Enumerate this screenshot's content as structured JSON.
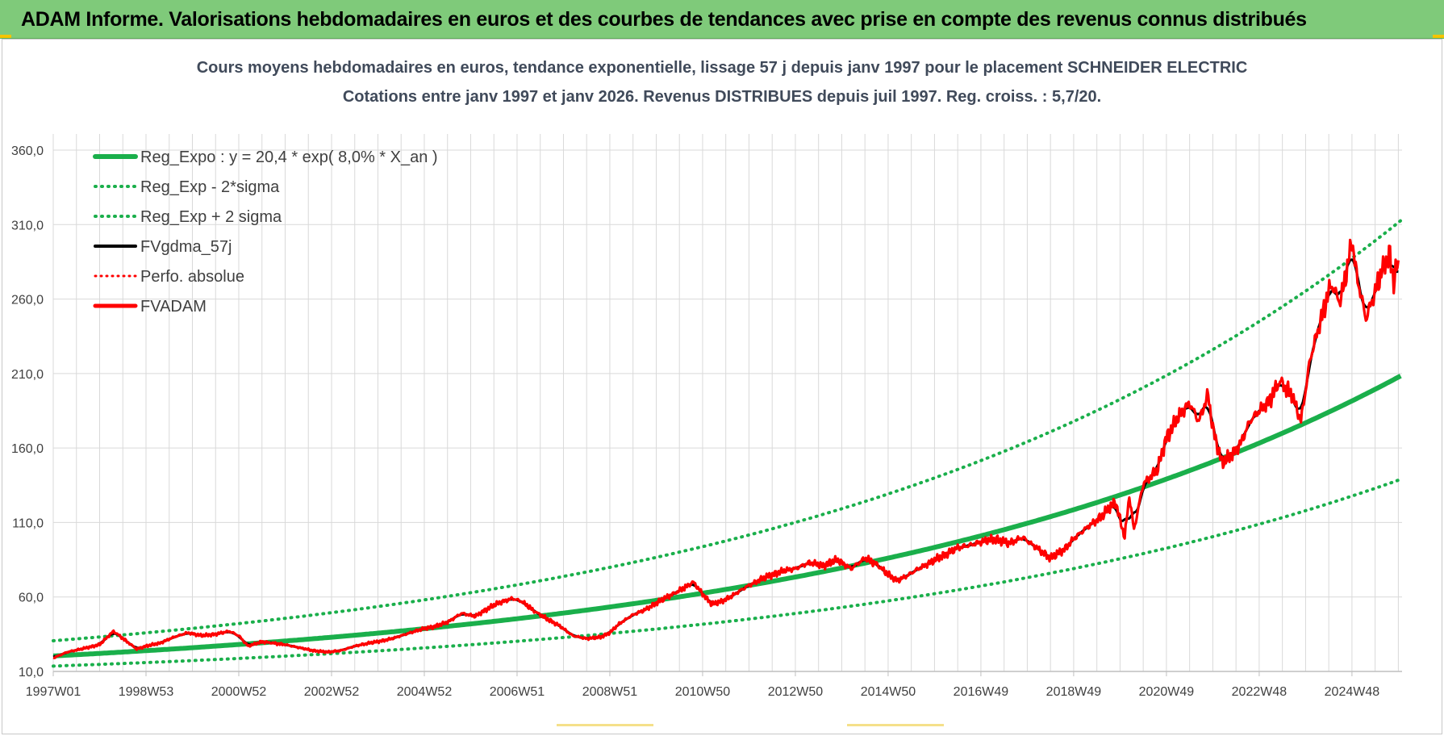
{
  "header": {
    "title": "ADAM Informe. Valorisations hebdomadaires en euros et des courbes de tendances avec prise en compte des revenus connus distribués"
  },
  "colors": {
    "header_bg": "#7fca7a",
    "trend": "#1aaf4b",
    "smooth": "#000000",
    "price": "#ff0000",
    "grid": "#d9d9d9",
    "title_text": "#404a5a"
  },
  "chart_data": {
    "type": "line",
    "title": "Cours moyens hebdomadaires en euros, tendance exponentielle, lissage 57 j depuis janv 1997 pour le placement SCHNEIDER ELECTRIC",
    "subtitle": "Cotations entre janv 1997 et janv 2026. Revenus DISTRIBUES depuis juil 1997. Reg. croiss. : 5,7/20.",
    "xlabel": "",
    "ylabel": "",
    "xlim": [
      1997.0,
      2026.08
    ],
    "ylim": [
      10,
      360
    ],
    "y_ticks": [
      10,
      60,
      110,
      160,
      210,
      260,
      310,
      360
    ],
    "y_tick_labels": [
      "10,0",
      "60,0",
      "110,0",
      "160,0",
      "210,0",
      "260,0",
      "310,0",
      "360,0"
    ],
    "x_ticks": [
      1997.0,
      1999.0,
      2001.0,
      2003.0,
      2005.0,
      2007.0,
      2009.0,
      2011.0,
      2013.0,
      2015.0,
      2017.0,
      2019.0,
      2021.0,
      2023.0,
      2025.0
    ],
    "x_tick_labels": [
      "1997W01",
      "1998W53",
      "2000W52",
      "2002W52",
      "2004W52",
      "2006W51",
      "2008W51",
      "2010W50",
      "2012W50",
      "2014W50",
      "2016W49",
      "2018W49",
      "2020W49",
      "2022W48",
      "2024W48"
    ],
    "grid": true,
    "legend_position": "top-left",
    "series": [
      {
        "name": "Reg_Expo : y = 20,4 * exp( 8,0% *  X_an )",
        "style": "solid-thick",
        "color": "#1aaf4b",
        "model": {
          "a": 20.4,
          "rate": 0.08,
          "start": 1997.0
        }
      },
      {
        "name": "Reg_Exp - 2*sigma",
        "style": "dotted",
        "color": "#1aaf4b",
        "model": {
          "a": 13.6,
          "rate": 0.08,
          "start": 1997.0
        }
      },
      {
        "name": "Reg_Exp + 2 sigma",
        "style": "dotted",
        "color": "#1aaf4b",
        "model": {
          "a": 30.6,
          "rate": 0.08,
          "start": 1997.0
        }
      },
      {
        "name": "FVgdma_57j",
        "style": "solid",
        "color": "#000000",
        "derived": "moving-average-of-FVADAM"
      },
      {
        "name": "Perfo. absolue",
        "style": "dotted",
        "color": "#ff0000",
        "values": []
      },
      {
        "name": "FVADAM",
        "style": "solid-thick",
        "color": "#ff0000",
        "x": [
          1997.0,
          1997.3,
          1997.6,
          1998.0,
          1998.3,
          1998.55,
          1998.8,
          1999.0,
          1999.3,
          1999.6,
          1999.9,
          2000.2,
          2000.5,
          2000.8,
          2001.0,
          2001.2,
          2001.5,
          2001.75,
          2002.0,
          2002.3,
          2002.6,
          2002.9,
          2003.2,
          2003.5,
          2003.8,
          2004.0,
          2004.3,
          2004.6,
          2004.9,
          2005.2,
          2005.5,
          2005.8,
          2006.1,
          2006.3,
          2006.6,
          2006.9,
          2007.1,
          2007.35,
          2007.6,
          2007.9,
          2008.2,
          2008.5,
          2008.8,
          2009.0,
          2009.2,
          2009.5,
          2009.8,
          2010.0,
          2010.3,
          2010.55,
          2010.8,
          2011.0,
          2011.2,
          2011.4,
          2011.6,
          2011.9,
          2012.2,
          2012.5,
          2012.8,
          2013.0,
          2013.3,
          2013.6,
          2013.9,
          2014.2,
          2014.5,
          2014.75,
          2015.0,
          2015.2,
          2015.4,
          2015.6,
          2015.9,
          2016.2,
          2016.5,
          2016.8,
          2017.0,
          2017.3,
          2017.6,
          2017.9,
          2018.2,
          2018.5,
          2018.8,
          2019.0,
          2019.3,
          2019.6,
          2019.9,
          2020.1,
          2020.2,
          2020.3,
          2020.5,
          2020.8,
          2021.0,
          2021.3,
          2021.5,
          2021.7,
          2021.9,
          2022.0,
          2022.2,
          2022.4,
          2022.6,
          2022.8,
          2023.0,
          2023.2,
          2023.45,
          2023.7,
          2023.9,
          2024.1,
          2024.3,
          2024.55,
          2024.75,
          2024.9,
          2025.0,
          2025.1,
          2025.3,
          2025.5,
          2025.65,
          2025.8,
          2025.9,
          2026.0
        ],
        "values": [
          19,
          23,
          25,
          28,
          37,
          31,
          25,
          27,
          29,
          33,
          36,
          34,
          35,
          37,
          34,
          27,
          30,
          29,
          28,
          26,
          24,
          23,
          24,
          27,
          29,
          30,
          32,
          35,
          38,
          40,
          43,
          49,
          47,
          51,
          56,
          59,
          57,
          51,
          46,
          41,
          34,
          32,
          33,
          36,
          42,
          48,
          52,
          56,
          61,
          65,
          70,
          62,
          55,
          57,
          60,
          66,
          71,
          75,
          78,
          79,
          83,
          81,
          85,
          79,
          86,
          82,
          75,
          71,
          74,
          78,
          83,
          88,
          93,
          95,
          97,
          99,
          96,
          100,
          93,
          86,
          92,
          99,
          107,
          114,
          124,
          100,
          128,
          105,
          136,
          145,
          167,
          183,
          190,
          178,
          196,
          173,
          150,
          155,
          163,
          178,
          185,
          191,
          205,
          196,
          178,
          220,
          243,
          270,
          258,
          281,
          300,
          276,
          247,
          265,
          279,
          291,
          272,
          286
        ]
      }
    ]
  }
}
